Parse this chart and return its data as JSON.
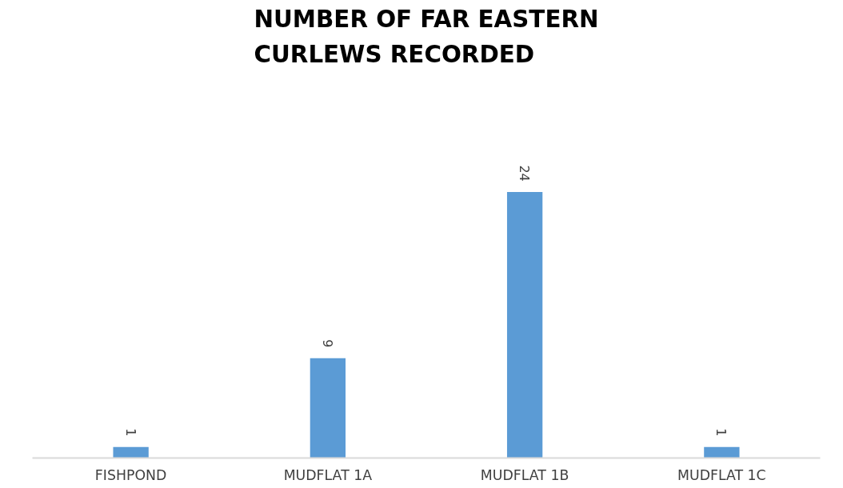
{
  "chart_data": {
    "type": "bar",
    "title": "NUMBER OF FAR EASTERN CURLEWS RECORDED",
    "categories": [
      "FISHPOND",
      "MUDFLAT 1A",
      "MUDFLAT 1B",
      "MUDFLAT 1C"
    ],
    "values": [
      1,
      9,
      24,
      1
    ],
    "color": "#5b9bd5",
    "data_labels": true,
    "grid": false
  }
}
